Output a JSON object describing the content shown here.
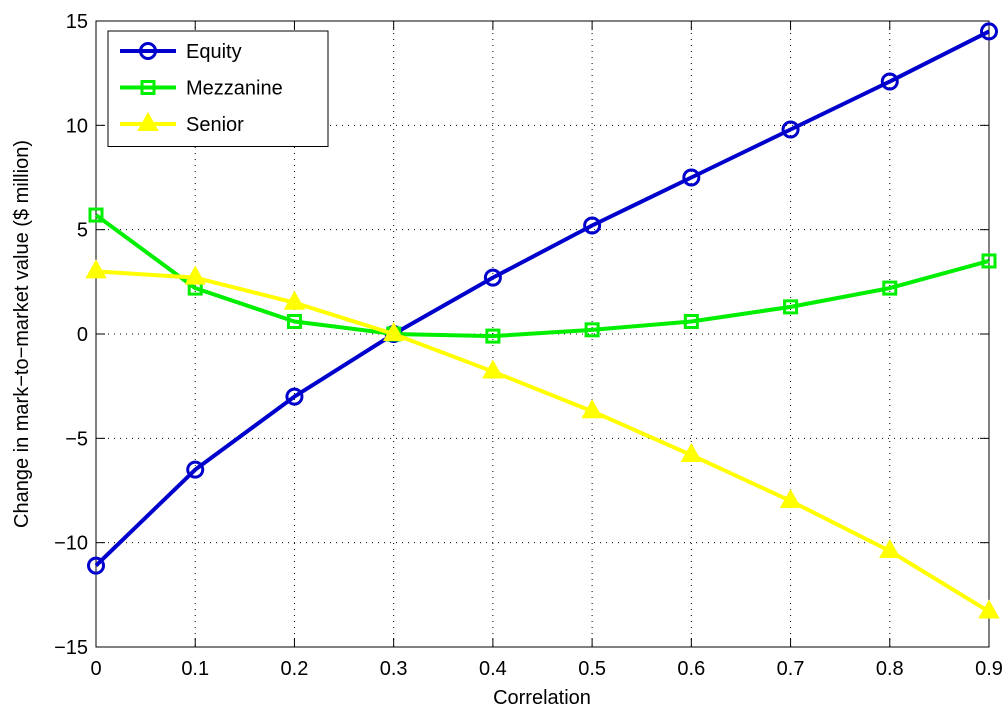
{
  "chart_data": {
    "type": "line",
    "title": "",
    "xlabel": "Correlation",
    "ylabel": "Change in mark−to−market value ($ million)",
    "x": [
      0,
      0.1,
      0.2,
      0.3,
      0.4,
      0.5,
      0.6,
      0.7,
      0.8,
      0.9
    ],
    "xlim": [
      0,
      0.9
    ],
    "ylim": [
      -15,
      15
    ],
    "x_ticks": [
      "0",
      "0.1",
      "0.2",
      "0.3",
      "0.4",
      "0.5",
      "0.6",
      "0.7",
      "0.8",
      "0.9"
    ],
    "y_ticks": [
      "−15",
      "−10",
      "−5",
      "0",
      "5",
      "10",
      "15"
    ],
    "x_tick_values": [
      0,
      0.1,
      0.2,
      0.3,
      0.4,
      0.5,
      0.6,
      0.7,
      0.8,
      0.9
    ],
    "y_tick_values": [
      -15,
      -10,
      -5,
      0,
      5,
      10,
      15
    ],
    "grid": true,
    "legend_position": "top-left",
    "series": [
      {
        "name": "Equity",
        "color": "#0000cc",
        "marker": "circle",
        "values": [
          -11.1,
          -6.5,
          -3.0,
          0.0,
          2.7,
          5.2,
          7.5,
          9.8,
          12.1,
          14.5
        ]
      },
      {
        "name": "Mezzanine",
        "color": "#00ee00",
        "marker": "square",
        "values": [
          5.7,
          2.2,
          0.6,
          0.0,
          -0.1,
          0.2,
          0.6,
          1.3,
          2.2,
          3.5
        ]
      },
      {
        "name": "Senior",
        "color": "#ffff00",
        "marker": "triangle",
        "values": [
          3.0,
          2.7,
          1.5,
          0.0,
          -1.8,
          -3.7,
          -5.8,
          -8.0,
          -10.4,
          -13.3
        ]
      }
    ]
  }
}
